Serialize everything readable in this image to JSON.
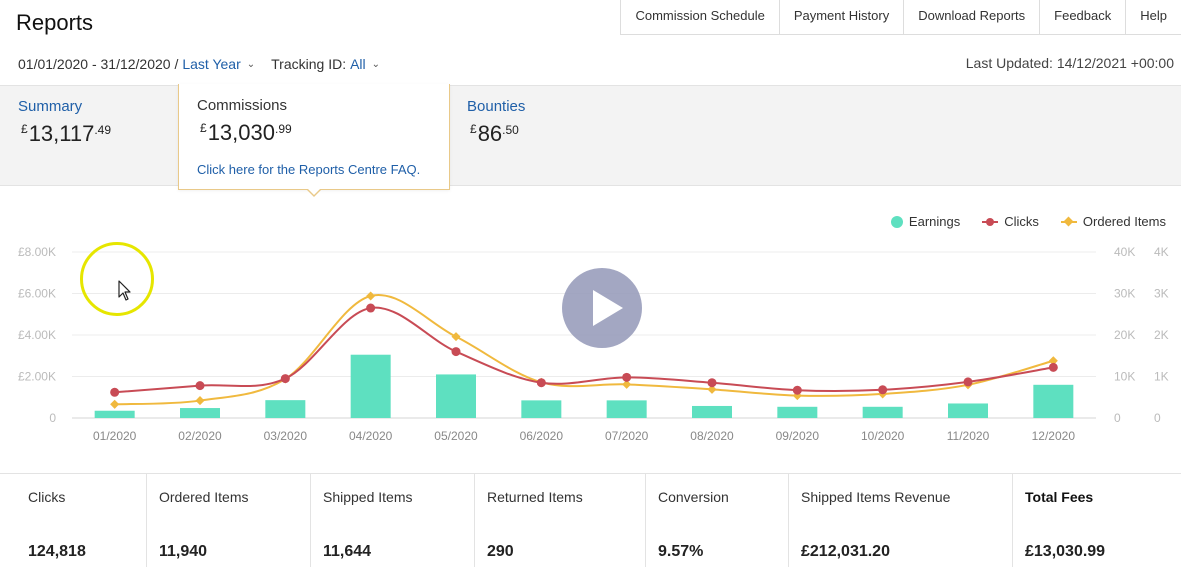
{
  "page": {
    "title": "Reports",
    "date_range": "01/01/2020 - 31/12/2020 /",
    "period": "Last Year",
    "tracking_label": "Tracking ID:",
    "tracking_value": "All",
    "last_updated": "Last Updated: 14/12/2021 +00:00"
  },
  "top_nav": [
    "Commission Schedule",
    "Payment History",
    "Download Reports",
    "Feedback",
    "Help"
  ],
  "summary": {
    "currency": "£",
    "summary_label": "Summary",
    "summary_whole": "13,117",
    "summary_frac": ".49",
    "commissions_label": "Commissions",
    "commissions_whole": "13,030",
    "commissions_frac": ".99",
    "faq_link": "Click here for the Reports Centre FAQ.",
    "bounties_label": "Bounties",
    "bounties_whole": "86",
    "bounties_frac": ".50"
  },
  "legend": {
    "earnings": "Earnings",
    "clicks": "Clicks",
    "ordered_items": "Ordered Items"
  },
  "colors": {
    "earnings": "#5ee0c0",
    "clicks": "#c84b55",
    "ordered_items": "#f0b93e",
    "link": "#1f5fa8"
  },
  "chart_data": {
    "type": "bar",
    "categories": [
      "01/2020",
      "02/2020",
      "03/2020",
      "04/2020",
      "05/2020",
      "06/2020",
      "07/2020",
      "08/2020",
      "09/2020",
      "10/2020",
      "11/2020",
      "12/2020"
    ],
    "series": [
      {
        "name": "Earnings",
        "type": "bar",
        "axis": "left",
        "values": [
          350,
          480,
          860,
          3050,
          2100,
          850,
          850,
          580,
          540,
          540,
          700,
          1600
        ]
      },
      {
        "name": "Clicks",
        "type": "line",
        "axis": "right1",
        "values": [
          6200,
          7800,
          9500,
          26500,
          16000,
          8500,
          9800,
          8500,
          6700,
          6800,
          8700,
          12200
        ]
      },
      {
        "name": "Ordered Items",
        "type": "line",
        "axis": "right2",
        "values": [
          330,
          420,
          940,
          2940,
          1960,
          860,
          810,
          690,
          540,
          580,
          800,
          1380
        ]
      }
    ],
    "left_axis": {
      "ticks": [
        "0",
        "£2.00K",
        "£4.00K",
        "£6.00K",
        "£8.00K"
      ],
      "ylim": [
        0,
        8000
      ]
    },
    "right_axis_1": {
      "ticks": [
        "0",
        "10K",
        "20K",
        "30K",
        "40K"
      ],
      "ylim": [
        0,
        40000
      ]
    },
    "right_axis_2": {
      "ticks": [
        "0",
        "1K",
        "2K",
        "3K",
        "4K"
      ],
      "ylim": [
        0,
        4000
      ]
    },
    "grid": true,
    "legend_position": "top-right"
  },
  "metrics": [
    {
      "label": "Clicks",
      "value": "124,818"
    },
    {
      "label": "Ordered Items",
      "value": "11,940"
    },
    {
      "label": "Shipped Items",
      "value": "11,644"
    },
    {
      "label": "Returned Items",
      "value": "290"
    },
    {
      "label": "Conversion",
      "value": "9.57%"
    },
    {
      "label": "Shipped Items Revenue",
      "value": "£212,031.20"
    },
    {
      "label": "Total Fees",
      "value": "£13,030.99"
    }
  ]
}
